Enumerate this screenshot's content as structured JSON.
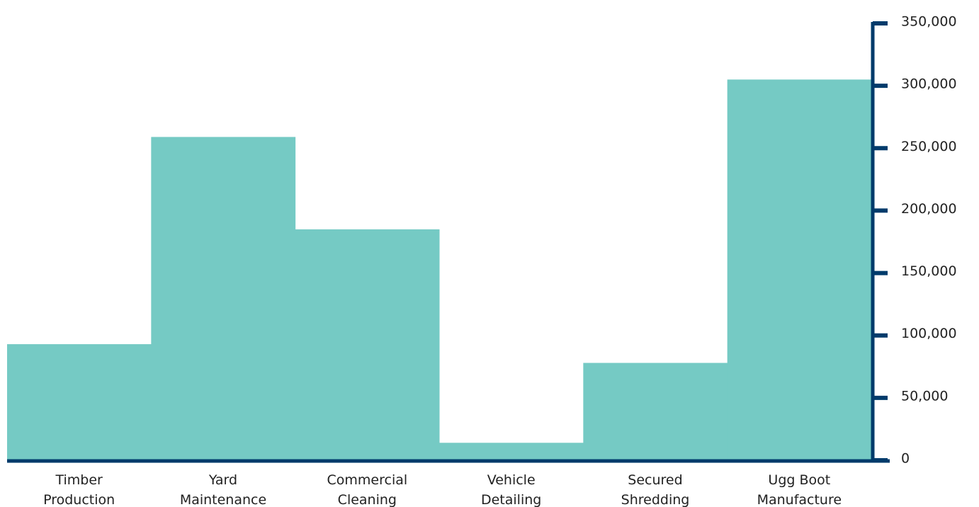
{
  "colors": {
    "bar": "#75CAC4",
    "axis": "#003B6B",
    "text": "#222222"
  },
  "chart_data": {
    "type": "bar",
    "categories": [
      [
        "Timber",
        "Production"
      ],
      [
        "Yard",
        "Maintenance"
      ],
      [
        "Commercial",
        "Cleaning"
      ],
      [
        "Vehicle",
        "Detailing"
      ],
      [
        "Secured",
        "Shredding"
      ],
      [
        "Ugg Boot",
        "Manufacture"
      ]
    ],
    "values": [
      93000,
      259000,
      185000,
      14000,
      78000,
      305000
    ],
    "ylim": [
      0,
      350000
    ],
    "y_ticks": [
      0,
      50000,
      100000,
      150000,
      200000,
      250000,
      300000,
      350000
    ],
    "y_tick_labels": [
      "0",
      "50,000",
      "100,000",
      "150,000",
      "200,000",
      "250,000",
      "300,000",
      "350,000"
    ],
    "y_axis_side": "right",
    "grid": false,
    "legend": "none",
    "title": "",
    "xlabel": "",
    "ylabel": ""
  }
}
